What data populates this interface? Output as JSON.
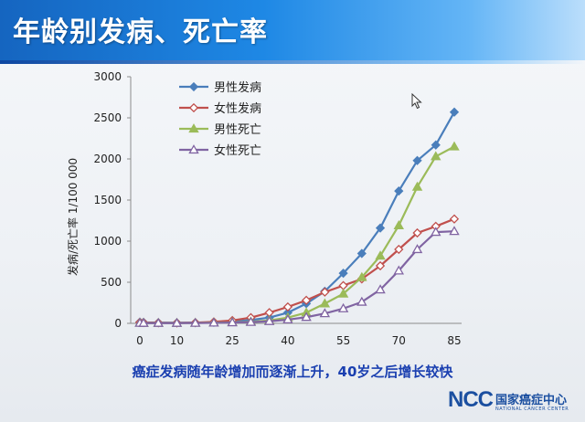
{
  "slide": {
    "title": "年龄别发病、死亡率",
    "caption": "癌症发病随年龄增加而逐渐上升，40岁之后增长较快",
    "logo": {
      "mark": "NCC",
      "cn": "国家癌症中心",
      "en": "NATIONAL CANCER CENTER"
    }
  },
  "chart_data": {
    "type": "line",
    "ylabel": "发病/死亡率   1/100 000",
    "ylim": [
      0,
      3000
    ],
    "yticks": [
      0,
      500,
      1000,
      1500,
      2000,
      2500,
      3000
    ],
    "xticks": [
      0,
      10,
      25,
      40,
      55,
      70,
      85
    ],
    "x": [
      0,
      1,
      5,
      10,
      15,
      20,
      25,
      30,
      35,
      40,
      45,
      50,
      55,
      60,
      65,
      70,
      75,
      80,
      85
    ],
    "legend_position": "top-left",
    "grid": false,
    "series": [
      {
        "name": "男性发病",
        "color": "#4a7ebb",
        "marker": "diamond-filled",
        "values": [
          15,
          12,
          8,
          7,
          8,
          12,
          22,
          40,
          70,
          130,
          240,
          390,
          610,
          850,
          1160,
          1610,
          1980,
          2170,
          2570
        ]
      },
      {
        "name": "女性发病",
        "color": "#c0504d",
        "marker": "diamond-open",
        "values": [
          12,
          10,
          7,
          6,
          9,
          18,
          35,
          70,
          130,
          200,
          280,
          380,
          460,
          540,
          700,
          900,
          1100,
          1180,
          1270
        ]
      },
      {
        "name": "男性死亡",
        "color": "#9bbb59",
        "marker": "triangle-filled",
        "values": [
          5,
          4,
          4,
          4,
          5,
          8,
          12,
          20,
          35,
          70,
          130,
          240,
          360,
          560,
          820,
          1190,
          1660,
          2030,
          2150
        ]
      },
      {
        "name": "女性死亡",
        "color": "#8064a2",
        "marker": "triangle-open",
        "values": [
          4,
          3,
          3,
          3,
          4,
          6,
          10,
          15,
          25,
          45,
          75,
          120,
          180,
          260,
          410,
          640,
          900,
          1110,
          1120
        ]
      }
    ]
  }
}
